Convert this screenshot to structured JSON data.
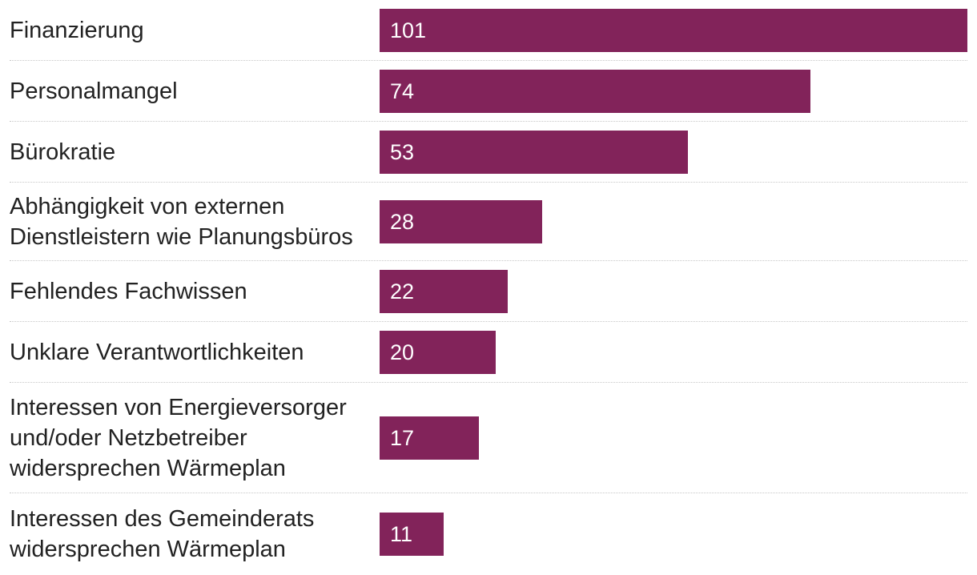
{
  "chart_data": {
    "type": "bar",
    "orientation": "horizontal",
    "bar_color": "#82235A",
    "categories": [
      "Finanzierung",
      "Personalmangel",
      "Bürokratie",
      "Abhängigkeit von externen\nDienstleistern wie Planungsbüros",
      "Fehlendes Fachwissen",
      "Unklare Verantwortlichkeiten",
      "Interessen von Energieversorger\nund/oder Netzbetreiber\nwidersprechen Wärmeplan",
      "Interessen des Gemeinderats\nwidersprechen Wärmeplan"
    ],
    "values": [
      101,
      74,
      53,
      28,
      22,
      20,
      17,
      11
    ],
    "xlim": [
      0,
      101
    ],
    "grid": false,
    "legend": "none"
  }
}
